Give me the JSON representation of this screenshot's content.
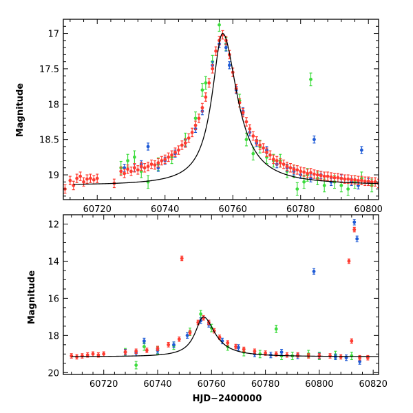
{
  "chart_data": [
    {
      "type": "scatter",
      "panel": "top",
      "xlabel": "",
      "ylabel": "Magnitude",
      "xlim": [
        60710,
        60803
      ],
      "ylim": [
        19.35,
        16.8
      ],
      "y_inverted": true,
      "xticks": [
        60720,
        60740,
        60760,
        60780,
        60800
      ],
      "yticks": [
        17,
        17.5,
        18,
        18.5,
        19
      ],
      "xticklabels": [
        "60720",
        "60740",
        "60760",
        "60780",
        "60800"
      ],
      "yticklabels": [
        "17",
        "17.5",
        "18",
        "18.5",
        "19"
      ],
      "error_bars": true,
      "series": [
        {
          "color": "#ff3b30",
          "err": 0.06,
          "points": [
            [
              60710.5,
              19.2
            ],
            [
              60712,
              19.08
            ],
            [
              60713,
              19.15
            ],
            [
              60714,
              19.05
            ],
            [
              60715,
              19.02
            ],
            [
              60716,
              19.1
            ],
            [
              60717,
              19.06
            ],
            [
              60718,
              19.05
            ],
            [
              60719,
              19.07
            ],
            [
              60720,
              19.05
            ],
            [
              60725,
              19.12
            ],
            [
              60727,
              18.95
            ],
            [
              60728,
              18.98
            ],
            [
              60729,
              18.92
            ],
            [
              60730,
              18.95
            ],
            [
              60731,
              18.9
            ],
            [
              60732,
              18.93
            ],
            [
              60733,
              18.88
            ],
            [
              60734,
              18.9
            ],
            [
              60735,
              18.88
            ],
            [
              60736,
              18.85
            ],
            [
              60737,
              18.86
            ],
            [
              60738,
              18.83
            ],
            [
              60739,
              18.8
            ],
            [
              60740,
              18.78
            ],
            [
              60741,
              18.75
            ],
            [
              60742,
              18.72
            ],
            [
              60743,
              18.68
            ],
            [
              60744,
              18.65
            ],
            [
              60745,
              18.58
            ],
            [
              60746,
              18.55
            ],
            [
              60747,
              18.48
            ],
            [
              60748,
              18.4
            ],
            [
              60749,
              18.3
            ],
            [
              60750,
              18.2
            ],
            [
              60751,
              18.05
            ],
            [
              60752,
              17.9
            ],
            [
              60753,
              17.7
            ],
            [
              60754,
              17.5
            ],
            [
              60755,
              17.25
            ],
            [
              60756,
              17.1
            ],
            [
              60757,
              17.02
            ],
            [
              60758,
              17.1
            ],
            [
              60759,
              17.3
            ],
            [
              60760,
              17.55
            ],
            [
              60761,
              17.78
            ],
            [
              60762,
              17.98
            ],
            [
              60763,
              18.12
            ],
            [
              60764,
              18.25
            ],
            [
              60765,
              18.35
            ],
            [
              60766,
              18.45
            ],
            [
              60767,
              18.52
            ],
            [
              60768,
              18.58
            ],
            [
              60769,
              18.62
            ],
            [
              60770,
              18.68
            ],
            [
              60771,
              18.72
            ],
            [
              60772,
              18.78
            ],
            [
              60773,
              18.8
            ],
            [
              60774,
              18.83
            ],
            [
              60775,
              18.85
            ],
            [
              60776,
              18.88
            ],
            [
              60777,
              18.9
            ],
            [
              60778,
              18.92
            ],
            [
              60779,
              18.93
            ],
            [
              60780,
              18.95
            ],
            [
              60781,
              18.96
            ],
            [
              60782,
              18.98
            ],
            [
              60783,
              18.97
            ],
            [
              60784,
              18.99
            ],
            [
              60785,
              19.0
            ],
            [
              60786,
              19.01
            ],
            [
              60787,
              19.02
            ],
            [
              60788,
              19.02
            ],
            [
              60789,
              19.03
            ],
            [
              60790,
              19.04
            ],
            [
              60791,
              19.04
            ],
            [
              60792,
              19.05
            ],
            [
              60793,
              19.06
            ],
            [
              60794,
              19.06
            ],
            [
              60795,
              19.07
            ],
            [
              60796,
              19.07
            ],
            [
              60797,
              19.08
            ],
            [
              60798,
              19.08
            ],
            [
              60799,
              19.09
            ],
            [
              60800,
              19.09
            ],
            [
              60801,
              19.1
            ],
            [
              60802,
              19.1
            ],
            [
              60803,
              19.12
            ]
          ]
        },
        {
          "color": "#1f5bd6",
          "err": 0.05,
          "points": [
            [
              60728,
              18.9
            ],
            [
              60731,
              18.9
            ],
            [
              60733,
              18.85
            ],
            [
              60735,
              18.6
            ],
            [
              60738,
              18.9
            ],
            [
              60740,
              18.8
            ],
            [
              60743,
              18.7
            ],
            [
              60746,
              18.55
            ],
            [
              60749,
              18.35
            ],
            [
              60751,
              18.1
            ],
            [
              60754,
              17.45
            ],
            [
              60756,
              17.15
            ],
            [
              60758,
              17.2
            ],
            [
              60759,
              17.45
            ],
            [
              60761,
              17.8
            ],
            [
              60763,
              18.1
            ],
            [
              60765,
              18.4
            ],
            [
              60767,
              18.55
            ],
            [
              60770,
              18.65
            ],
            [
              60773,
              18.85
            ],
            [
              60776,
              18.9
            ],
            [
              60778,
              18.95
            ],
            [
              60780,
              19.0
            ],
            [
              60783,
              19.05
            ],
            [
              60784,
              18.5
            ],
            [
              60786,
              19.0
            ],
            [
              60789,
              19.1
            ],
            [
              60792,
              19.05
            ],
            [
              60795,
              19.1
            ],
            [
              60797,
              19.15
            ],
            [
              60798,
              18.65
            ],
            [
              60800,
              19.1
            ]
          ]
        },
        {
          "color": "#3ddc3d",
          "err": 0.09,
          "points": [
            [
              60727,
              18.9
            ],
            [
              60729,
              18.8
            ],
            [
              60731,
              18.75
            ],
            [
              60733,
              18.95
            ],
            [
              60735,
              19.1
            ],
            [
              60738,
              18.85
            ],
            [
              60742,
              18.75
            ],
            [
              60746,
              18.5
            ],
            [
              60749,
              18.2
            ],
            [
              60751,
              17.8
            ],
            [
              60752,
              17.7
            ],
            [
              60754,
              17.4
            ],
            [
              60756,
              16.88
            ],
            [
              60758,
              17.15
            ],
            [
              60762,
              17.95
            ],
            [
              60764,
              18.5
            ],
            [
              60766,
              18.7
            ],
            [
              60768,
              18.6
            ],
            [
              60770,
              18.75
            ],
            [
              60772,
              18.8
            ],
            [
              60774,
              18.8
            ],
            [
              60776,
              18.95
            ],
            [
              60778,
              18.95
            ],
            [
              60779,
              19.2
            ],
            [
              60781,
              19.1
            ],
            [
              60782,
              19.0
            ],
            [
              60783,
              17.65
            ],
            [
              60785,
              19.05
            ],
            [
              60787,
              19.15
            ],
            [
              60790,
              19.1
            ],
            [
              60792,
              19.15
            ],
            [
              60794,
              19.2
            ],
            [
              60796,
              19.1
            ],
            [
              60798,
              19.05
            ],
            [
              60801,
              19.15
            ]
          ]
        }
      ]
    },
    {
      "type": "scatter",
      "panel": "bottom",
      "xlabel": "HJD−2400000",
      "ylabel": "Magnitude",
      "xlim": [
        60705,
        60822
      ],
      "ylim": [
        20.1,
        11.5
      ],
      "y_inverted": true,
      "xticks": [
        60720,
        60740,
        60760,
        60780,
        60800,
        60820
      ],
      "yticks": [
        12,
        14,
        16,
        18,
        20
      ],
      "xticklabels": [
        "60720",
        "60740",
        "60760",
        "60780",
        "60800",
        "60820"
      ],
      "yticklabels": [
        "12",
        "14",
        "16",
        "18",
        "20"
      ],
      "error_bars": true,
      "series": [
        {
          "color": "#ff3b30",
          "err": 0.12,
          "points": [
            [
              60708,
              19.1
            ],
            [
              60710,
              19.15
            ],
            [
              60712,
              19.1
            ],
            [
              60714,
              19.05
            ],
            [
              60716,
              19.0
            ],
            [
              60718,
              19.05
            ],
            [
              60720,
              19.0
            ],
            [
              60728,
              18.9
            ],
            [
              60732,
              18.85
            ],
            [
              60736,
              18.8
            ],
            [
              60740,
              18.7
            ],
            [
              60744,
              18.5
            ],
            [
              60748,
              18.2
            ],
            [
              60749,
              13.85
            ],
            [
              60752,
              17.85
            ],
            [
              60755,
              17.3
            ],
            [
              60757,
              17.05
            ],
            [
              60759,
              17.3
            ],
            [
              60761,
              17.75
            ],
            [
              60763,
              18.1
            ],
            [
              60766,
              18.4
            ],
            [
              60769,
              18.6
            ],
            [
              60772,
              18.75
            ],
            [
              60776,
              18.85
            ],
            [
              60780,
              18.95
            ],
            [
              60784,
              19.0
            ],
            [
              60788,
              19.05
            ],
            [
              60792,
              19.05
            ],
            [
              60796,
              19.1
            ],
            [
              60800,
              19.1
            ],
            [
              60804,
              19.1
            ],
            [
              60808,
              19.15
            ],
            [
              60811,
              14.0
            ],
            [
              60812,
              18.3
            ],
            [
              60813,
              12.3
            ],
            [
              60815,
              19.2
            ],
            [
              60818,
              19.2
            ]
          ]
        },
        {
          "color": "#1f5bd6",
          "err": 0.15,
          "points": [
            [
              60728,
              18.9
            ],
            [
              60732,
              18.95
            ],
            [
              60735,
              18.3
            ],
            [
              60740,
              18.8
            ],
            [
              60746,
              18.5
            ],
            [
              60751,
              18.0
            ],
            [
              60756,
              17.2
            ],
            [
              60759,
              17.4
            ],
            [
              60764,
              18.3
            ],
            [
              60770,
              18.65
            ],
            [
              60776,
              19.0
            ],
            [
              60782,
              19.05
            ],
            [
              60786,
              18.9
            ],
            [
              60792,
              19.1
            ],
            [
              60798,
              14.55
            ],
            [
              60800,
              19.1
            ],
            [
              60806,
              19.15
            ],
            [
              60810,
              19.2
            ],
            [
              60813,
              11.9
            ],
            [
              60814,
              12.8
            ],
            [
              60815,
              19.4
            ]
          ]
        },
        {
          "color": "#3ddc3d",
          "err": 0.2,
          "points": [
            [
              60728,
              18.9
            ],
            [
              60732,
              19.6
            ],
            [
              60735,
              18.6
            ],
            [
              60740,
              18.8
            ],
            [
              60746,
              18.55
            ],
            [
              60752,
              17.8
            ],
            [
              60756,
              16.85
            ],
            [
              60760,
              17.6
            ],
            [
              60766,
              18.6
            ],
            [
              60772,
              18.9
            ],
            [
              60778,
              19.0
            ],
            [
              60784,
              17.65
            ],
            [
              60786,
              19.1
            ],
            [
              60790,
              19.1
            ],
            [
              60796,
              19.0
            ],
            [
              60800,
              19.1
            ],
            [
              60806,
              19.05
            ],
            [
              60812,
              19.1
            ]
          ]
        }
      ]
    }
  ]
}
